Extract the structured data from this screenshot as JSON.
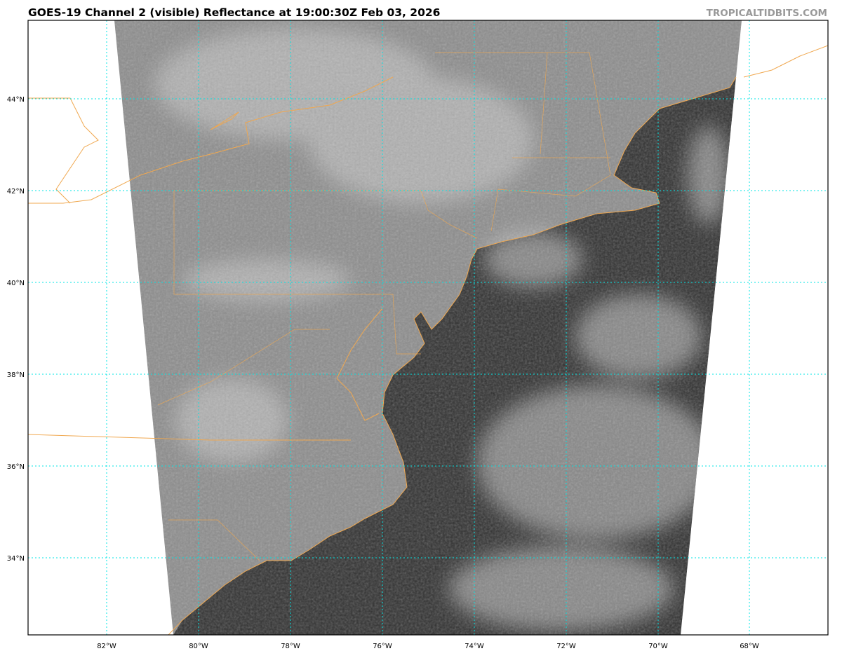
{
  "header": {
    "title": "GOES-19 Channel 2 (visible) Reflectance at 19:00:30Z Feb 03, 2026",
    "credit": "TROPICALTIDBITS.COM"
  },
  "map": {
    "lon_labels": [
      "82°W",
      "80°W",
      "78°W",
      "76°W",
      "74°W",
      "72°W",
      "70°W",
      "68°W"
    ],
    "lat_labels": [
      "44°N",
      "42°N",
      "40°N",
      "38°N",
      "36°N",
      "34°N"
    ],
    "colors": {
      "gridline": "#00e5e5",
      "coastline": "#f0a850",
      "land": "#8c8c8c",
      "ocean": "#2f2f2f",
      "clouds": "#c8c8c8"
    }
  }
}
